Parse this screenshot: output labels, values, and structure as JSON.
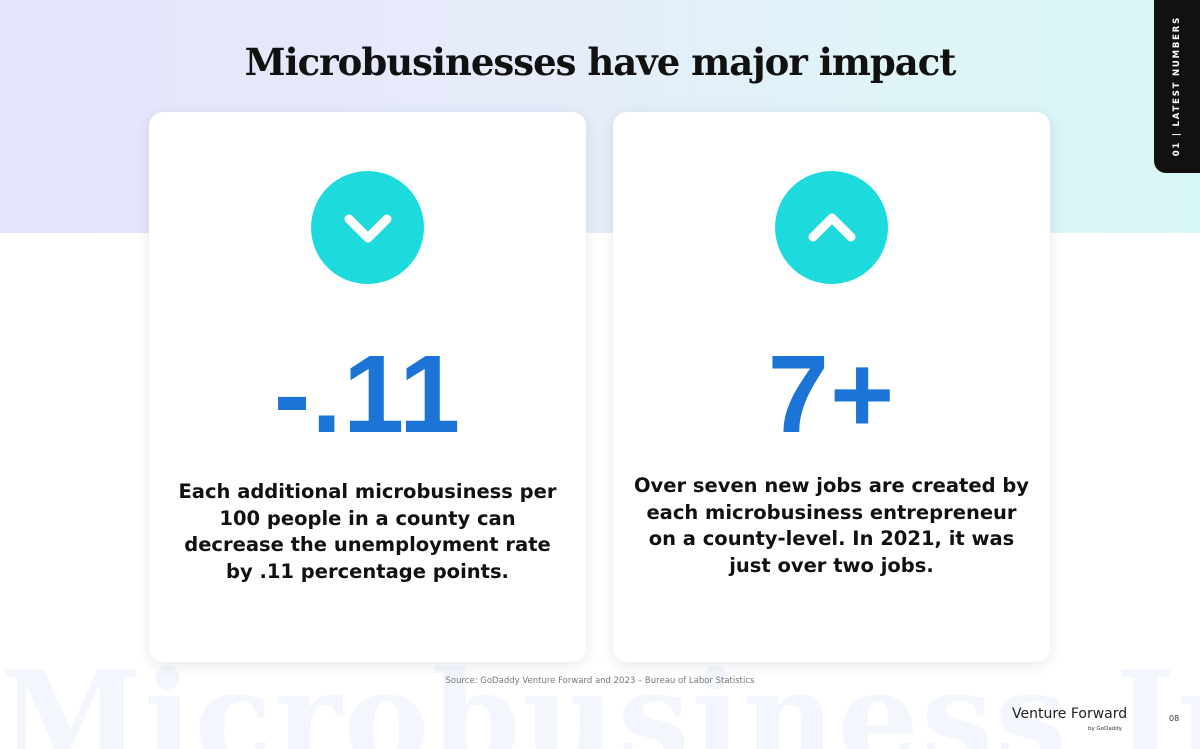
{
  "slide": {
    "title": "Microbusinesses have major impact",
    "section_tab": "01 | LATEST NUMBERS",
    "watermark": "Microbusiness Impact",
    "accent_color": "#1ddbdc",
    "stat_color": "#1c74d6"
  },
  "cards": [
    {
      "icon": "chevron-down-icon",
      "stat": "-.11",
      "description": "Each additional microbusiness per 100 people in a county can decrease the unemployment rate by .11 percentage points."
    },
    {
      "icon": "chevron-up-icon",
      "stat": "7+",
      "description": "Over seven new jobs are created by each microbusiness entrepreneur on a county-level. In 2021, it was just over two jobs."
    }
  ],
  "footer": {
    "source": "Source: GoDaddy Venture Forward and 2023 – Bureau of Labor Statistics",
    "brand": "Venture Forward",
    "brand_sub": "by GoDaddy",
    "page_number": "08"
  }
}
